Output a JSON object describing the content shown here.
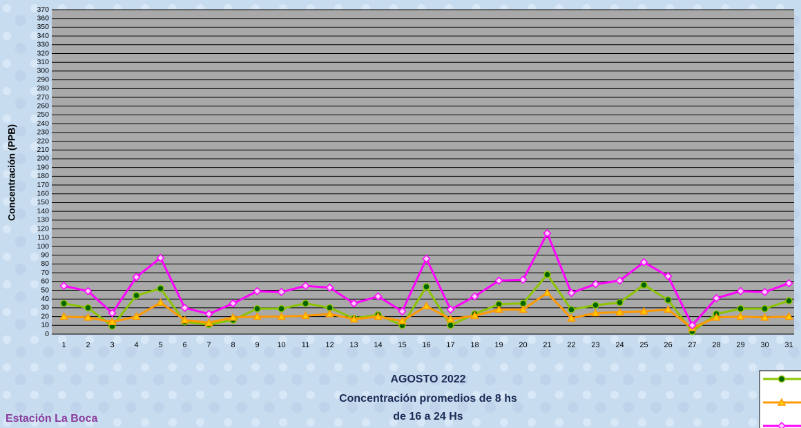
{
  "chart_data": {
    "type": "line",
    "subtitle_lines": [
      "AGOSTO 2022",
      "Concentración promedios de 8 hs",
      "de 16 a 24 Hs"
    ],
    "station": "Estación La Boca",
    "y_label": "Concentración  (PPB)",
    "categories": [
      "1",
      "2",
      "3",
      "4",
      "5",
      "6",
      "7",
      "8",
      "9",
      "10",
      "11",
      "12",
      "13",
      "14",
      "15",
      "16",
      "17",
      "18",
      "19",
      "20",
      "21",
      "22",
      "23",
      "24",
      "25",
      "26",
      "27",
      "28",
      "29",
      "30",
      "31"
    ],
    "series": [
      {
        "color": "#8cc400",
        "marker": "circle",
        "values": [
          35,
          30,
          9,
          44,
          52,
          14,
          11,
          16,
          29,
          29,
          35,
          30,
          18,
          22,
          10,
          54,
          10,
          23,
          34,
          35,
          68,
          28,
          33,
          36,
          56,
          39,
          3,
          23,
          29,
          29,
          38
        ]
      },
      {
        "color": "#ff9900",
        "marker": "triangle",
        "values": [
          20,
          19,
          14,
          20,
          36,
          16,
          13,
          19,
          20,
          20,
          21,
          23,
          17,
          20,
          15,
          32,
          17,
          21,
          28,
          28,
          47,
          18,
          24,
          25,
          26,
          28,
          7,
          19,
          20,
          19,
          20
        ]
      },
      {
        "color": "#ff00ff",
        "marker": "diamond",
        "values": [
          55,
          49,
          24,
          65,
          87,
          30,
          23,
          35,
          49,
          48,
          55,
          53,
          35,
          43,
          26,
          86,
          28,
          43,
          61,
          62,
          115,
          47,
          57,
          61,
          82,
          66,
          10,
          41,
          49,
          48,
          58
        ]
      }
    ],
    "ylim": [
      0,
      370
    ],
    "yticks": [
      0,
      10,
      20,
      30,
      40,
      50,
      60,
      70,
      80,
      90,
      100,
      110,
      120,
      130,
      140,
      150,
      160,
      170,
      180,
      190,
      200,
      210,
      220,
      230,
      240,
      250,
      260,
      270,
      280,
      290,
      300,
      310,
      320,
      330,
      340,
      350,
      360,
      370
    ],
    "grid": true
  }
}
